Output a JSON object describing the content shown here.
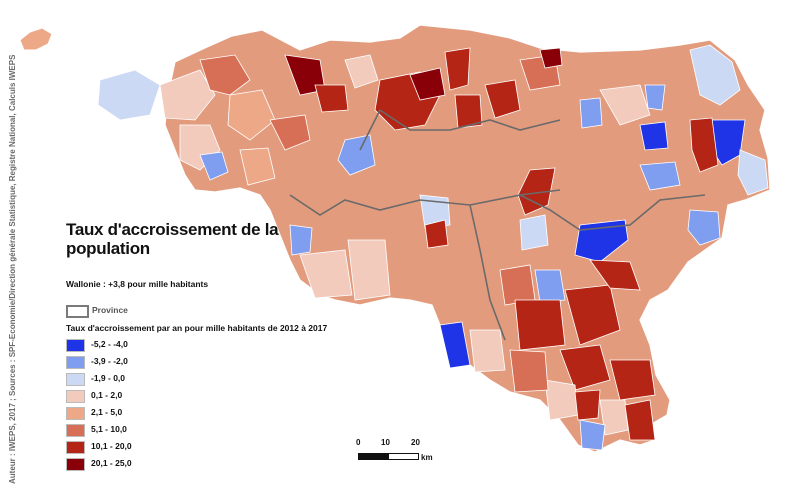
{
  "map": {
    "title": "Taux d'accroissement de la population",
    "subtitle": "Wallonie : +3,8 pour mille habitants",
    "province_label": "Province",
    "legend_title": "Taux d'accroissement par an pour mille habitants de 2012 à 2017",
    "credit": "Auteur : IWEPS, 2017 ; Sources : SPF-Economie/Direction générale Statistique, Registre National, Calculs IWEPS",
    "legend": [
      {
        "label": "-5,2 - -4,0",
        "color": "#1f34e6"
      },
      {
        "label": "-3,9 - -2,0",
        "color": "#7f9ef0"
      },
      {
        "label": "-1,9 - 0,0",
        "color": "#ccd9f4"
      },
      {
        "label": "0,1 - 2,0",
        "color": "#f2cbbd"
      },
      {
        "label": "2,1 - 5,0",
        "color": "#eda888"
      },
      {
        "label": "5,1 - 10,0",
        "color": "#d66f55"
      },
      {
        "label": "10,1 - 20,0",
        "color": "#b42516"
      },
      {
        "label": "20,1 - 25,0",
        "color": "#8a0008"
      }
    ],
    "scale": {
      "ticks": [
        "0",
        "10",
        "20"
      ],
      "unit": "km"
    }
  }
}
